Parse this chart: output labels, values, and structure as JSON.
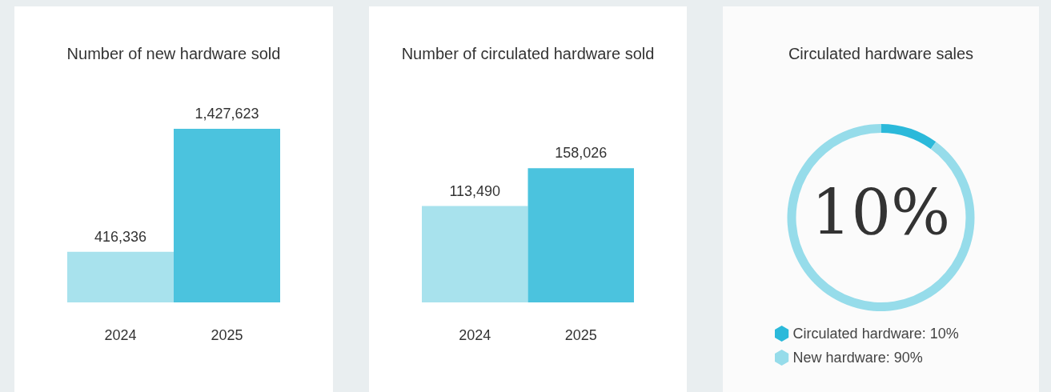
{
  "chart_data": [
    {
      "type": "bar",
      "title": "Number of new hardware sold",
      "categories": [
        "2024",
        "2025"
      ],
      "values": [
        416336,
        1427623
      ],
      "colors": [
        "#a8e2ed",
        "#4bc3de"
      ],
      "value_labels": [
        "416,336",
        "1,427,623"
      ],
      "tick_labels": "x",
      "grid": false,
      "legend": false
    },
    {
      "type": "bar",
      "title": "Number of circulated hardware sold",
      "categories": [
        "2024",
        "2025"
      ],
      "values": [
        113490,
        158026
      ],
      "colors": [
        "#a8e2ed",
        "#4bc3de"
      ],
      "value_labels": [
        "113,490",
        "158,026"
      ],
      "tick_labels": "x",
      "grid": false,
      "legend": false
    },
    {
      "type": "donut",
      "title": "Circulated hardware sales",
      "categories": [
        "Circulated hardware: 10%",
        "New hardware: 90%"
      ],
      "values": [
        10,
        90
      ],
      "colors": [
        "#2bb9da",
        "#96dcea"
      ],
      "annotations": [
        "10%"
      ],
      "legend": "bottom"
    }
  ]
}
